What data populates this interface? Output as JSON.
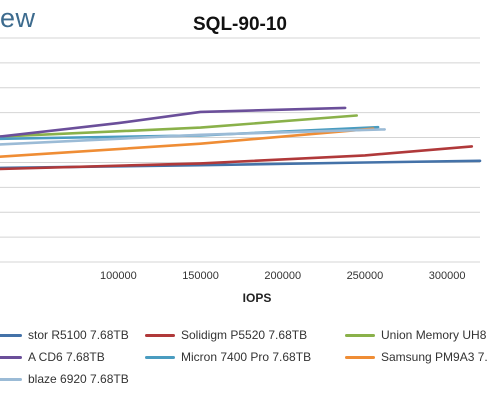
{
  "header": {
    "logo_text": "ew"
  },
  "chart_data": {
    "type": "line",
    "title": "SQL-90-10",
    "xlabel": "IOPS",
    "ylabel": "",
    "x_tick_labels": [
      "100000",
      "150000",
      "200000",
      "250000",
      "300000"
    ],
    "xlim": [
      28000,
      320000
    ],
    "ylim": [
      0,
      1
    ],
    "grid": true,
    "legend_position": "bottom",
    "series": [
      {
        "name": "stor R5100 7.68TB",
        "color": "#4472a8",
        "x": [
          28000,
          150000,
          250000,
          320000
        ],
        "y": [
          0.42,
          0.432,
          0.444,
          0.452
        ]
      },
      {
        "name": "Solidigm P5520 7.68TB",
        "color": "#b0393a",
        "x": [
          28000,
          150000,
          250000,
          315000
        ],
        "y": [
          0.415,
          0.44,
          0.476,
          0.516
        ]
      },
      {
        "name": "Union Memory UH8",
        "color": "#8ab14a",
        "x": [
          28000,
          150000,
          245000
        ],
        "y": [
          0.56,
          0.6,
          0.654
        ]
      },
      {
        "name": "A CD6 7.68TB",
        "color": "#6b4f9a",
        "x": [
          28000,
          100000,
          150000,
          238000
        ],
        "y": [
          0.56,
          0.62,
          0.67,
          0.688
        ]
      },
      {
        "name": "Micron 7400 Pro 7.68TB",
        "color": "#4a9cc0",
        "x": [
          28000,
          150000,
          258000
        ],
        "y": [
          0.55,
          0.565,
          0.602
        ]
      },
      {
        "name": "Samsung PM9A3 7.",
        "color": "#ef8d35",
        "x": [
          28000,
          150000,
          255000
        ],
        "y": [
          0.47,
          0.528,
          0.595
        ]
      },
      {
        "name": "blaze 6920 7.68TB",
        "color": "#9bbbd6",
        "x": [
          28000,
          150000,
          262000
        ],
        "y": [
          0.525,
          0.568,
          0.592
        ]
      }
    ]
  }
}
